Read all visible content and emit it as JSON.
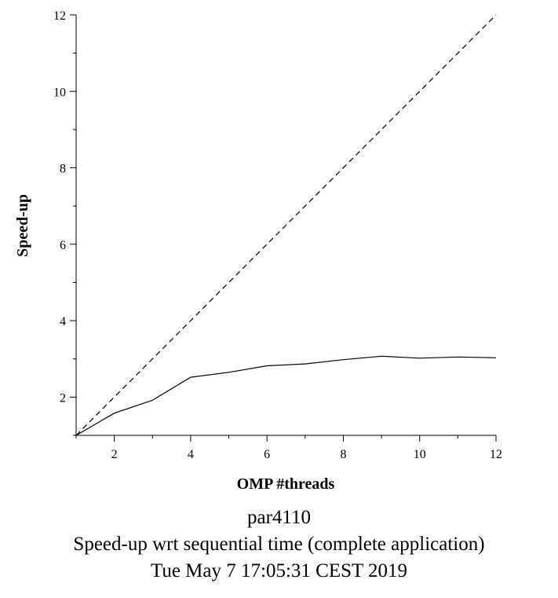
{
  "chart_data": {
    "type": "line",
    "xlabel": "OMP #threads",
    "ylabel": "Speed-up",
    "xlim": [
      1,
      12
    ],
    "ylim": [
      1,
      12
    ],
    "x_ticks_major": [
      2,
      4,
      6,
      8,
      10,
      12
    ],
    "y_ticks_major": [
      2,
      4,
      6,
      8,
      10,
      12
    ],
    "grid": false,
    "legend": "none",
    "series": [
      {
        "style": "solid",
        "color": "#000000",
        "x": [
          1,
          2,
          3,
          4,
          5,
          6,
          7,
          8,
          9,
          10,
          11,
          12
        ],
        "y": [
          1.0,
          1.58,
          1.92,
          2.52,
          2.65,
          2.82,
          2.87,
          2.98,
          3.07,
          3.02,
          3.05,
          3.03
        ]
      },
      {
        "style": "dashed",
        "color": "#000000",
        "x": [
          1,
          12
        ],
        "y": [
          1,
          12
        ]
      }
    ]
  },
  "captions": {
    "line1": "par4110",
    "line2": "Speed-up wrt sequential time (complete application)",
    "line3": "Tue May  7 17:05:31 CEST 2019"
  }
}
